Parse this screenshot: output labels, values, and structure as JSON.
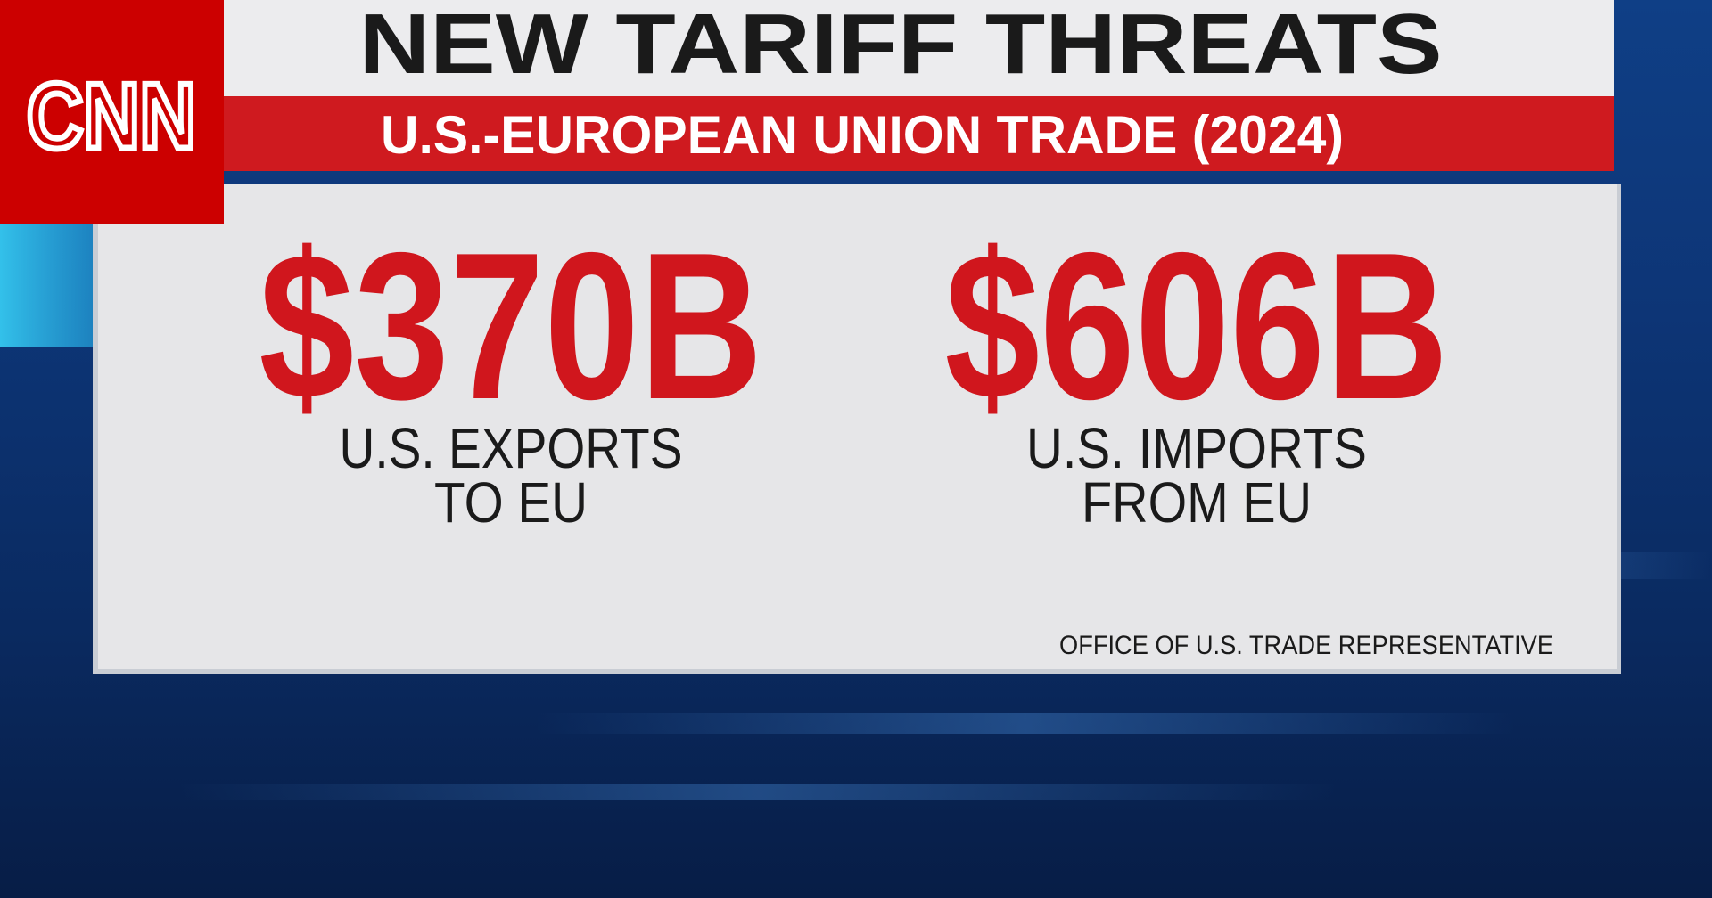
{
  "header": {
    "logo": "CNN",
    "title": "NEW TARIFF THREATS",
    "subtitle": "U.S.-EUROPEAN UNION TRADE (2024)"
  },
  "stats": [
    {
      "value": "$370B",
      "label_lines": [
        "U.S. EXPORTS",
        "TO EU"
      ]
    },
    {
      "value": "$606B",
      "label_lines": [
        "U.S. IMPORTS",
        "FROM EU"
      ]
    }
  ],
  "source": "OFFICE OF U.S. TRADE REPRESENTATIVE"
}
